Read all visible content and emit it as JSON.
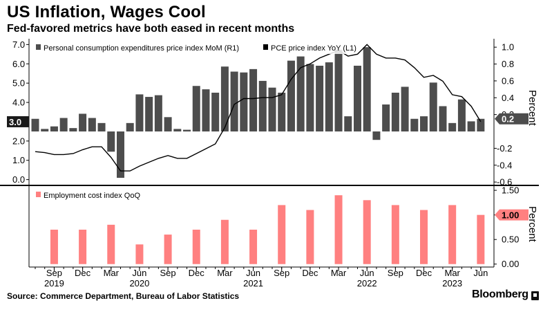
{
  "header": {
    "title": "US Inflation, Wages Cool",
    "subtitle": "Fed-favored metrics have both eased in recent months"
  },
  "footer": {
    "source": "Source: Commerce Department, Bureau of Labor Statistics",
    "brand": "Bloomberg"
  },
  "colors": {
    "bar_dark": "#4d4d4d",
    "line": "#000000",
    "bar_pink": "#ff8080",
    "callout_dark": "#1a1a1a",
    "callout_gray": "#4d4d4d",
    "callout_pink": "#ff8080"
  },
  "chart_data": [
    {
      "type": "bar+line",
      "title": "",
      "legend": [
        "Personal consumption expenditures price index MoM (R1)",
        "PCE price index YoY (L1)"
      ],
      "legend_position": "top-left",
      "xlabel": "",
      "y_left": {
        "ticks": [
          "0.0",
          "1.0",
          "2.0",
          "3.0",
          "4.0",
          "5.0",
          "6.0",
          "7.0"
        ],
        "range": [
          -0.3,
          7.3
        ]
      },
      "y_right": {
        "label": "Percent",
        "ticks": [
          "-0.6",
          "-0.4",
          "-0.2",
          "0.2",
          "0.4",
          "0.6",
          "0.8",
          "1.0"
        ],
        "range": [
          -0.64,
          1.1
        ]
      },
      "x": [
        "2019-07",
        "2019-08",
        "2019-09",
        "2019-10",
        "2019-11",
        "2019-12",
        "2020-01",
        "2020-02",
        "2020-03",
        "2020-04",
        "2020-05",
        "2020-06",
        "2020-07",
        "2020-08",
        "2020-09",
        "2020-10",
        "2020-11",
        "2020-12",
        "2021-01",
        "2021-02",
        "2021-03",
        "2021-04",
        "2021-05",
        "2021-06",
        "2021-07",
        "2021-08",
        "2021-09",
        "2021-10",
        "2021-11",
        "2021-12",
        "2022-01",
        "2022-02",
        "2022-03",
        "2022-04",
        "2022-05",
        "2022-06",
        "2022-07",
        "2022-08",
        "2022-09",
        "2022-10",
        "2022-11",
        "2022-12",
        "2023-01",
        "2023-02",
        "2023-03",
        "2023-04",
        "2023-05",
        "2023-06"
      ],
      "series": [
        {
          "name": "Personal consumption expenditures price index MoM (R1)",
          "kind": "bar",
          "axis": "right",
          "values": [
            0.15,
            0.03,
            0.06,
            0.16,
            0.04,
            0.21,
            0.16,
            0.1,
            -0.24,
            -0.55,
            0.1,
            0.44,
            0.41,
            0.43,
            0.17,
            0.03,
            0.02,
            0.54,
            0.5,
            0.46,
            0.77,
            0.71,
            0.7,
            0.74,
            0.6,
            0.52,
            0.46,
            0.84,
            0.89,
            0.8,
            0.78,
            0.82,
            0.97,
            0.18,
            0.78,
            1.0,
            -0.1,
            0.32,
            0.46,
            0.53,
            0.15,
            0.18,
            0.58,
            0.3,
            0.1,
            0.38,
            0.12,
            0.15
          ]
        },
        {
          "name": "PCE price index YoY (L1)",
          "kind": "line",
          "axis": "left",
          "values": [
            1.45,
            1.4,
            1.3,
            1.3,
            1.35,
            1.55,
            1.7,
            1.7,
            1.15,
            0.45,
            0.45,
            0.7,
            0.9,
            1.1,
            1.25,
            1.1,
            1.1,
            1.35,
            1.6,
            1.85,
            2.7,
            3.9,
            4.2,
            4.2,
            4.25,
            4.25,
            4.4,
            5.2,
            5.8,
            6.0,
            6.3,
            6.5,
            6.7,
            6.4,
            6.5,
            7.0,
            6.5,
            6.3,
            6.3,
            6.2,
            5.8,
            5.3,
            5.4,
            5.1,
            4.4,
            4.3,
            3.8,
            3.0
          ]
        }
      ],
      "callouts": [
        {
          "value": "3.0",
          "side": "left"
        },
        {
          "value": "0.2",
          "side": "right"
        }
      ]
    },
    {
      "type": "bar",
      "title": "",
      "legend": [
        "Employment cost index QoQ"
      ],
      "legend_position": "top-left",
      "y_right": {
        "label": "Percent",
        "ticks": [
          "0.00",
          "0.50",
          "1.00",
          "1.50"
        ],
        "range": [
          -0.06,
          1.6
        ]
      },
      "x_tick_labels": [
        {
          "date": "2019-09",
          "month": "Sep",
          "year": "2019"
        },
        {
          "date": "2019-12",
          "month": "Dec"
        },
        {
          "date": "2020-03",
          "month": "Mar"
        },
        {
          "date": "2020-06",
          "month": "Jun",
          "year": "2020"
        },
        {
          "date": "2020-09",
          "month": "Sep"
        },
        {
          "date": "2020-12",
          "month": "Dec"
        },
        {
          "date": "2021-03",
          "month": "Mar"
        },
        {
          "date": "2021-06",
          "month": "Jun",
          "year": "2021"
        },
        {
          "date": "2021-09",
          "month": "Sep"
        },
        {
          "date": "2021-12",
          "month": "Dec"
        },
        {
          "date": "2022-03",
          "month": "Mar"
        },
        {
          "date": "2022-06",
          "month": "Jun",
          "year": "2022"
        },
        {
          "date": "2022-09",
          "month": "Sep"
        },
        {
          "date": "2022-12",
          "month": "Dec"
        },
        {
          "date": "2023-03",
          "month": "Mar",
          "year": "2023"
        },
        {
          "date": "2023-06",
          "month": "Jun"
        }
      ],
      "quarters": [
        "2019-09",
        "2019-12",
        "2020-03",
        "2020-06",
        "2020-09",
        "2020-12",
        "2021-03",
        "2021-06",
        "2021-09",
        "2021-12",
        "2022-03",
        "2022-06",
        "2022-09",
        "2022-12",
        "2023-03",
        "2023-06"
      ],
      "series": [
        {
          "name": "Employment cost index QoQ",
          "kind": "bar",
          "axis": "right",
          "values": [
            0.7,
            0.7,
            0.8,
            0.4,
            0.6,
            0.7,
            0.9,
            0.7,
            1.2,
            1.1,
            1.4,
            1.3,
            1.2,
            1.1,
            1.2,
            1.0
          ]
        }
      ],
      "callouts": [
        {
          "value": "1.00",
          "side": "right"
        }
      ]
    }
  ]
}
